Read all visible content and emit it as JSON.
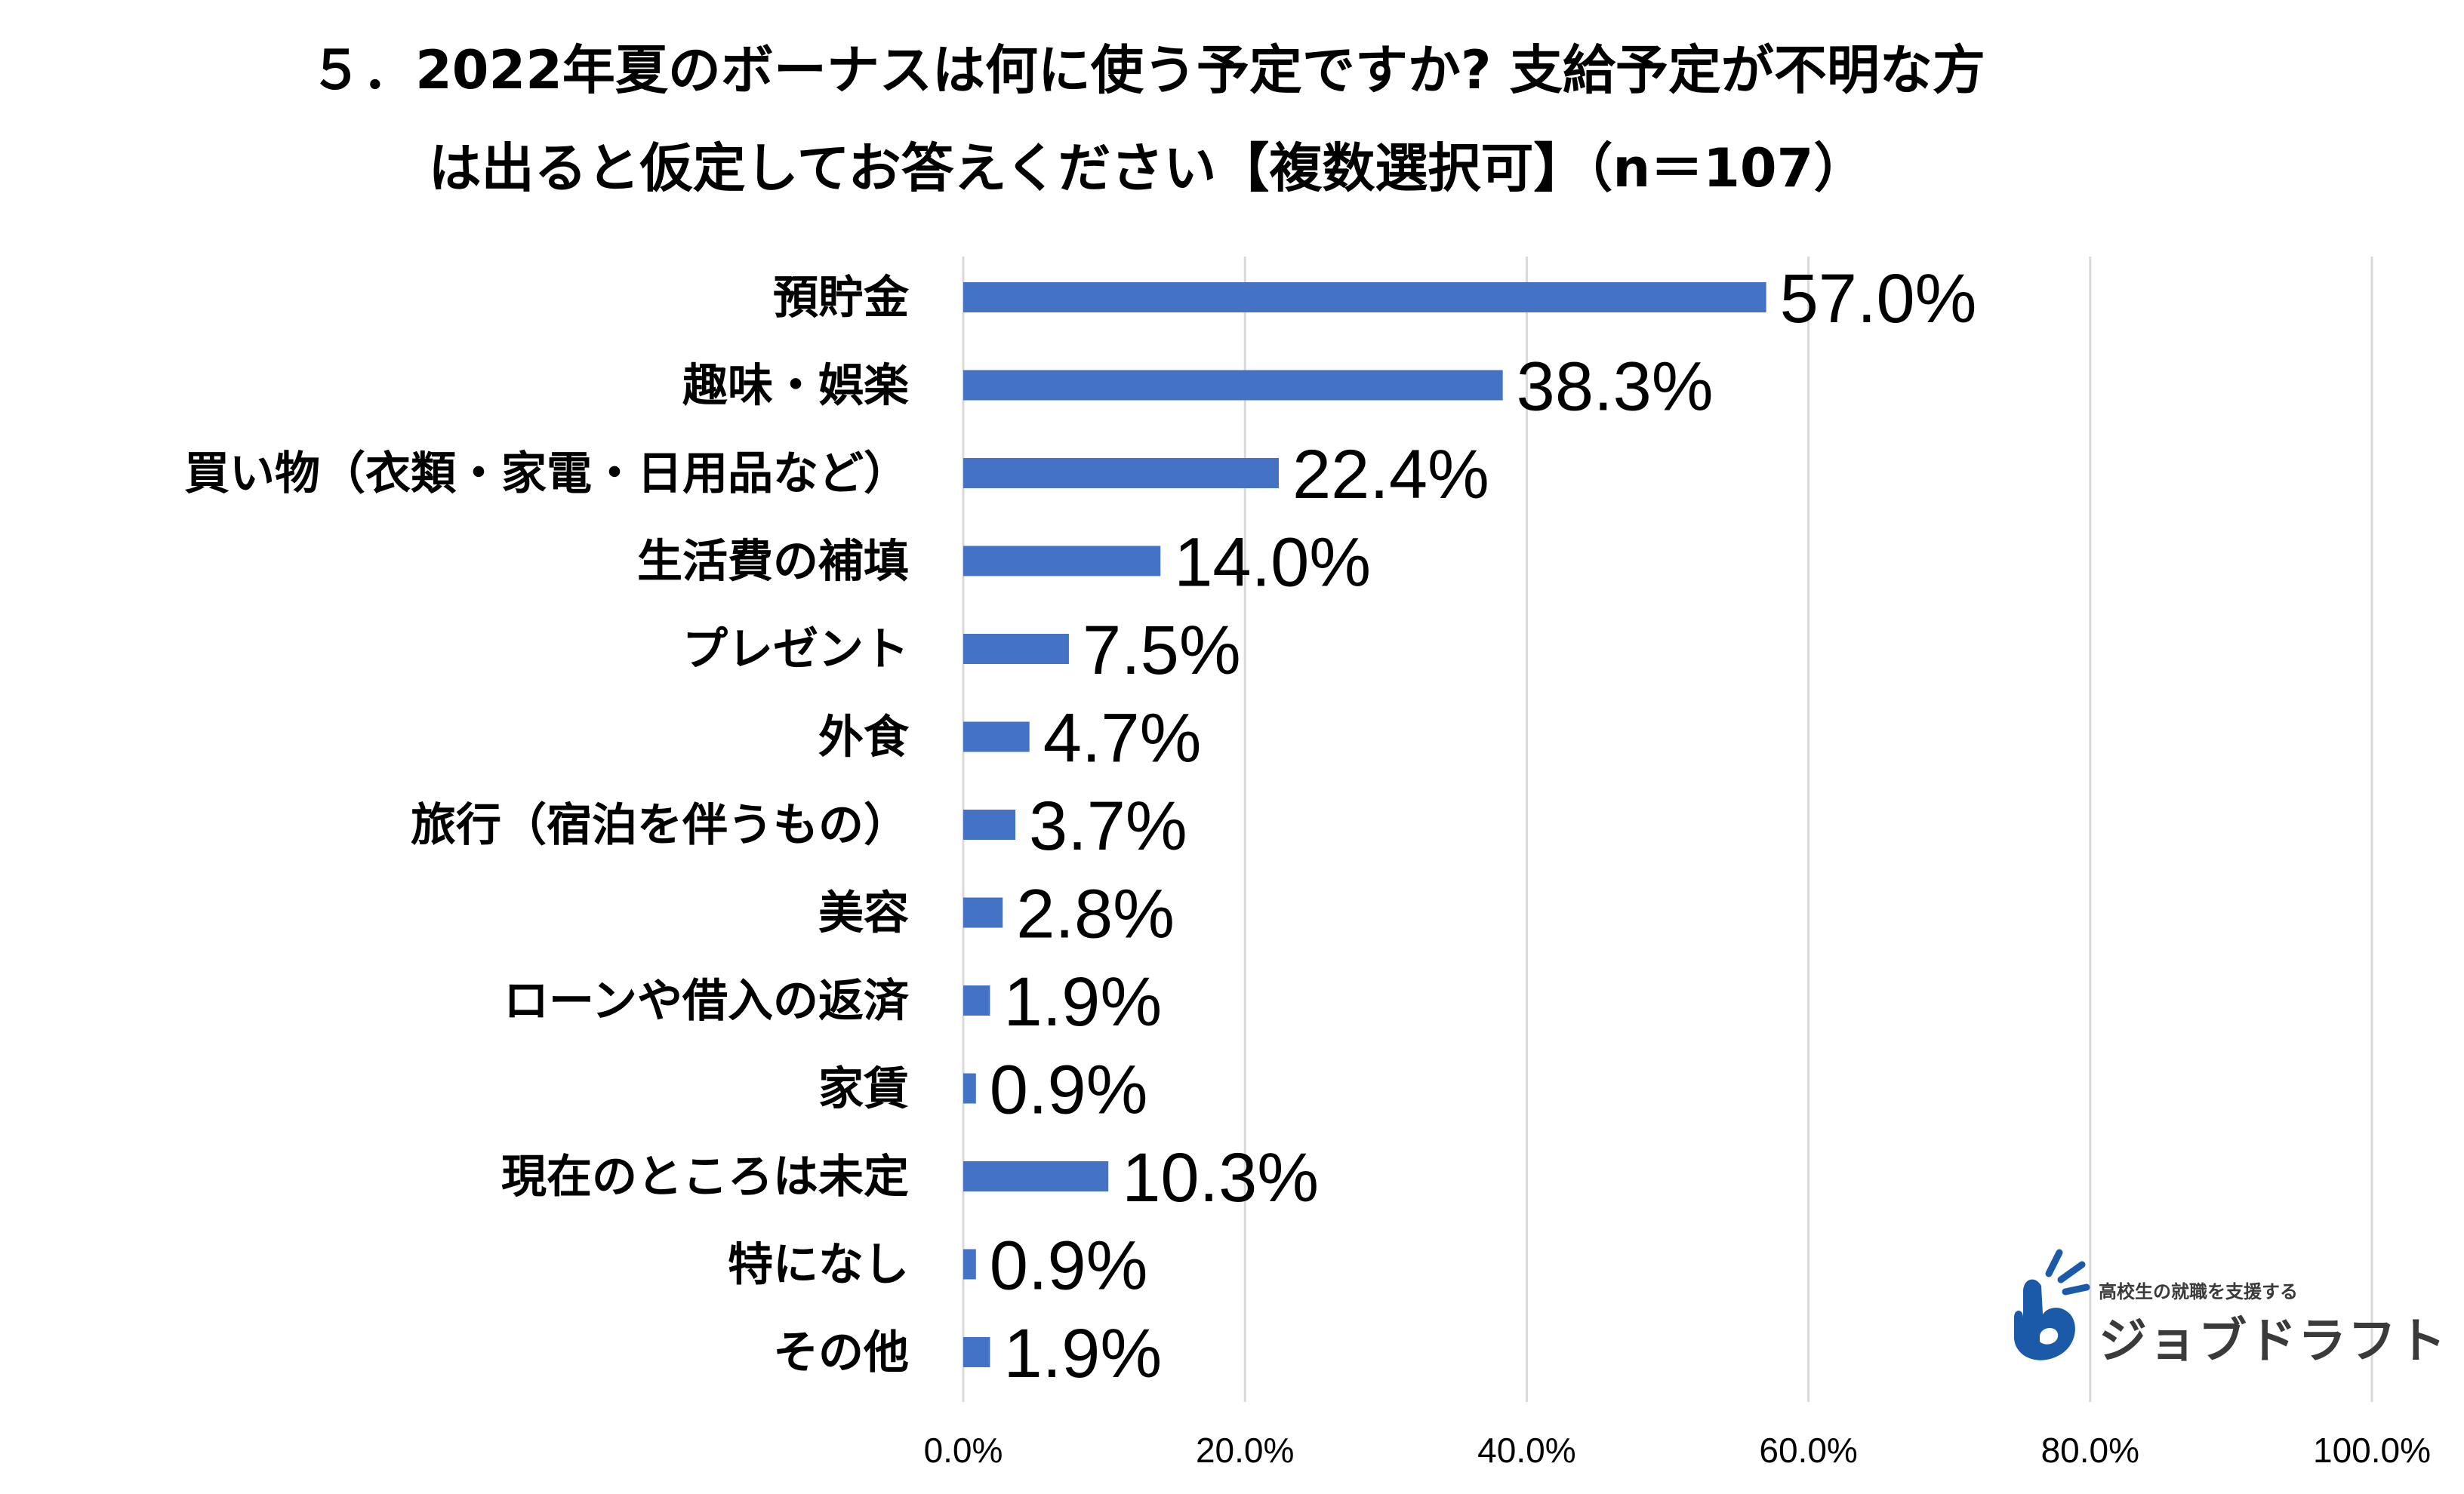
{
  "chart_data": {
    "type": "bar",
    "orientation": "horizontal",
    "title_lines": [
      "５．2022年夏のボーナスは何に使う予定ですか? 支給予定が不明な方",
      "は出ると仮定してお答えください【複数選択可】（n＝107）"
    ],
    "categories": [
      "預貯金",
      "趣味・娯楽",
      "買い物（衣類・家電・日用品など）",
      "生活費の補填",
      "プレゼント",
      "外食",
      "旅行（宿泊を伴うもの）",
      "美容",
      "ローンや借入の返済",
      "家賃",
      "現在のところは未定",
      "特になし",
      "その他"
    ],
    "values": [
      57.0,
      38.3,
      22.4,
      14.0,
      7.5,
      4.7,
      3.7,
      2.8,
      1.9,
      0.9,
      10.3,
      0.9,
      1.9
    ],
    "value_labels": [
      "57.0%",
      "38.3%",
      "22.4%",
      "14.0%",
      "7.5%",
      "4.7%",
      "3.7%",
      "2.8%",
      "1.9%",
      "0.9%",
      "10.3%",
      "0.9%",
      "1.9%"
    ],
    "xlim": [
      0,
      100
    ],
    "x_ticks": [
      0,
      20,
      40,
      60,
      80,
      100
    ],
    "x_tick_labels": [
      "0.0%",
      "20.0%",
      "40.0%",
      "60.0%",
      "80.0%",
      "100.0%"
    ],
    "grid": true,
    "bar_color": "#4472c4",
    "grid_color": "#d9d9d9"
  },
  "logo": {
    "tagline": "高校生の就職を支援する",
    "name": "ジョブドラフト",
    "color": "#1a5aa8"
  }
}
